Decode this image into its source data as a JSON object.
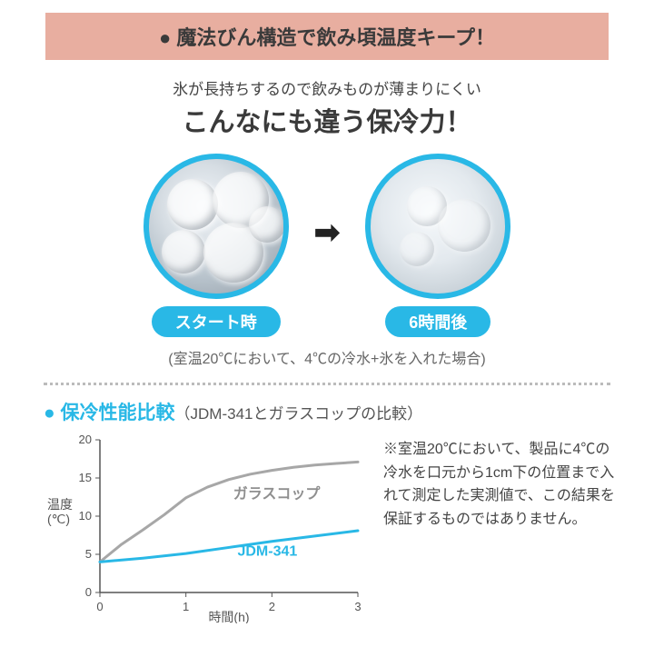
{
  "banner_text": "● 魔法びん構造で飲み頃温度キープ！",
  "sub1": "氷が長持ちするので飲みものが薄まりにくい",
  "headline": "こんなにも違う保冷力！",
  "pill_start": "スタート時",
  "pill_after": "6時間後",
  "condition": "(室温20℃において、4℃の冷水+氷を入れた場合)",
  "section_bullet": "● ",
  "section_label": "保冷性能比較",
  "section_desc": "（JDM-341とガラスコップの比較）",
  "note": "※室温20℃において、製品に4℃の冷水を口元から1cm下の位置まで入れて測定した実測値で、この結果を保証するものではありません。",
  "chart": {
    "type": "line",
    "xlabel": "時間(h)",
    "ylabel": "温度\n(℃)",
    "xlim": [
      0,
      3
    ],
    "ylim": [
      0,
      20
    ],
    "xticks": [
      0,
      1,
      2,
      3
    ],
    "yticks": [
      0,
      5,
      10,
      15,
      20
    ],
    "label_fontsize": 14,
    "tick_fontsize": 13,
    "axis_color": "#555555",
    "grid_color": "#f0f0f0",
    "background_color": "#ffffff",
    "line_width": 3,
    "annotation_fontsize": 16,
    "series": [
      {
        "name": "ガラスコップ",
        "color": "#a7a7a7",
        "label_color": "#8f8f8f",
        "label_pos": {
          "x": 1.55,
          "y": 12.3
        },
        "points": [
          {
            "x": 0.0,
            "y": 4.0
          },
          {
            "x": 0.25,
            "y": 6.3
          },
          {
            "x": 0.5,
            "y": 8.2
          },
          {
            "x": 0.75,
            "y": 10.2
          },
          {
            "x": 1.0,
            "y": 12.4
          },
          {
            "x": 1.25,
            "y": 13.8
          },
          {
            "x": 1.5,
            "y": 14.8
          },
          {
            "x": 1.75,
            "y": 15.5
          },
          {
            "x": 2.0,
            "y": 16.0
          },
          {
            "x": 2.25,
            "y": 16.4
          },
          {
            "x": 2.5,
            "y": 16.7
          },
          {
            "x": 2.75,
            "y": 16.9
          },
          {
            "x": 3.0,
            "y": 17.1
          }
        ]
      },
      {
        "name": "JDM-341",
        "color": "#29b8e6",
        "label_color": "#29b8e6",
        "label_pos": {
          "x": 1.6,
          "y": 4.8
        },
        "points": [
          {
            "x": 0.0,
            "y": 4.0
          },
          {
            "x": 0.5,
            "y": 4.5
          },
          {
            "x": 1.0,
            "y": 5.1
          },
          {
            "x": 1.5,
            "y": 5.9
          },
          {
            "x": 2.0,
            "y": 6.7
          },
          {
            "x": 2.5,
            "y": 7.4
          },
          {
            "x": 3.0,
            "y": 8.1
          }
        ]
      }
    ]
  },
  "colors": {
    "banner_bg": "#e8aea0",
    "accent": "#29b8e6",
    "text": "#3a3a3a"
  }
}
